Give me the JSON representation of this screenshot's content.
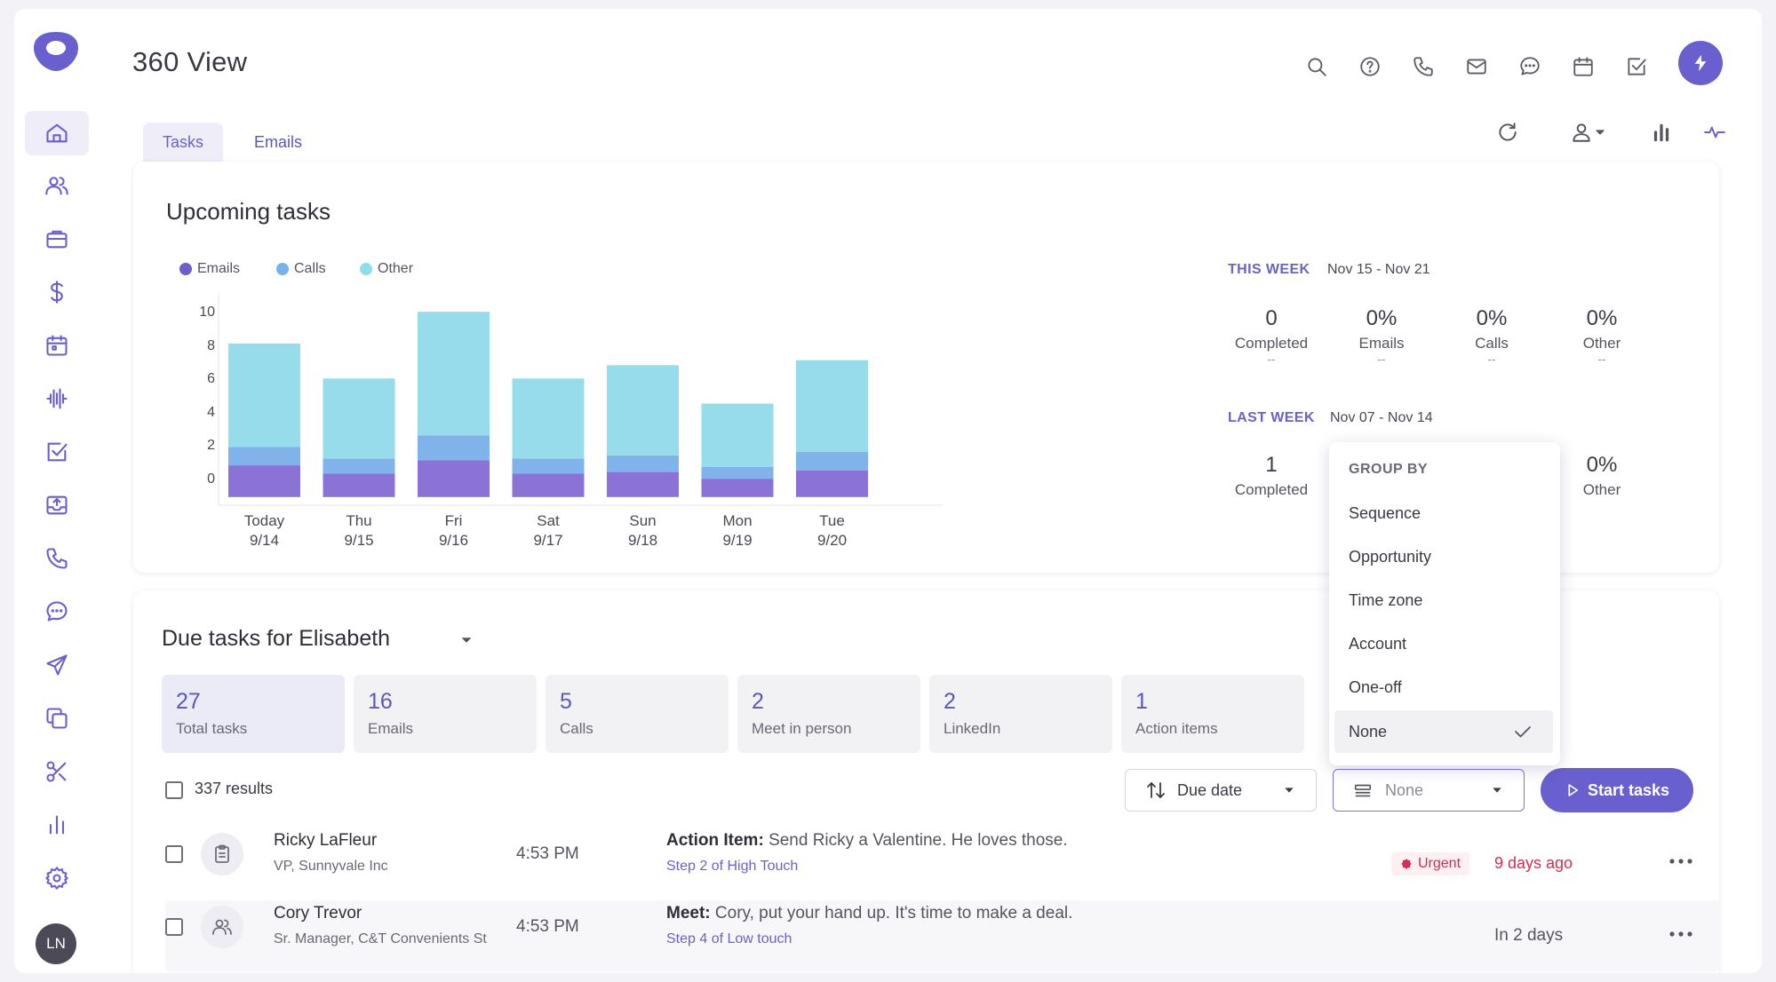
{
  "app": {
    "title": "360 View",
    "user_initials": "LN",
    "accent_color": "#6a5fcf"
  },
  "sidebar": {
    "items": [
      {
        "name": "home",
        "icon": "home-icon"
      },
      {
        "name": "people",
        "icon": "people-icon"
      },
      {
        "name": "deals",
        "icon": "briefcase-icon"
      },
      {
        "name": "revenue",
        "icon": "dollar-icon"
      },
      {
        "name": "calendar",
        "icon": "calendar-icon"
      },
      {
        "name": "activity",
        "icon": "waveform-icon"
      },
      {
        "name": "tasks",
        "icon": "checkbox-icon"
      },
      {
        "name": "inbox",
        "icon": "inbox-upload-icon"
      },
      {
        "name": "calls",
        "icon": "phone-icon"
      },
      {
        "name": "chat",
        "icon": "chat-icon"
      },
      {
        "name": "send",
        "icon": "send-icon"
      },
      {
        "name": "copy",
        "icon": "copy-icon"
      },
      {
        "name": "tools",
        "icon": "scissors-icon"
      },
      {
        "name": "reports",
        "icon": "bar-chart-icon"
      },
      {
        "name": "settings",
        "icon": "gear-icon"
      }
    ]
  },
  "tabs": [
    {
      "label": "Tasks",
      "active": true
    },
    {
      "label": "Emails",
      "active": false
    }
  ],
  "upcoming": {
    "title": "Upcoming tasks",
    "legend": [
      "Emails",
      "Calls",
      "Other"
    ]
  },
  "chart_data": {
    "type": "bar",
    "stacked": true,
    "categories": [
      "Today 9/14",
      "Thu 9/15",
      "Fri 9/16",
      "Sat 9/17",
      "Sun 9/18",
      "Mon 9/19",
      "Tue 9/20"
    ],
    "x_top": [
      "Today",
      "Thu",
      "Fri",
      "Sat",
      "Sun",
      "Mon",
      "Tue"
    ],
    "x_bottom": [
      "9/14",
      "9/15",
      "9/16",
      "9/17",
      "9/18",
      "9/19",
      "9/20"
    ],
    "series": [
      {
        "name": "Emails",
        "color": "#8b72d6",
        "values": [
          1.9,
          1.4,
          2.2,
          1.4,
          1.5,
          1.1,
          1.6
        ]
      },
      {
        "name": "Calls",
        "color": "#7fb3ea",
        "values": [
          1.1,
          0.9,
          1.5,
          0.9,
          1.0,
          0.7,
          1.1
        ]
      },
      {
        "name": "Other",
        "color": "#97dcea",
        "values": [
          6.2,
          4.8,
          7.4,
          4.8,
          5.4,
          3.8,
          5.5
        ]
      }
    ],
    "yticks": [
      0,
      2,
      4,
      6,
      8,
      10
    ],
    "ylim": [
      -1,
      11
    ],
    "legend_position": "top-left",
    "grid": false
  },
  "this_week": {
    "label": "THIS WEEK",
    "range": "Nov 15 - Nov 21",
    "stats": [
      {
        "value": "0",
        "label": "Completed",
        "delta": "--"
      },
      {
        "value": "0%",
        "label": "Emails",
        "delta": "--"
      },
      {
        "value": "0%",
        "label": "Calls",
        "delta": "--"
      },
      {
        "value": "0%",
        "label": "Other",
        "delta": "--"
      }
    ]
  },
  "last_week": {
    "label": "LAST WEEK",
    "range": "Nov 07 - Nov 14",
    "stats": [
      {
        "value": "1",
        "label": "Completed"
      },
      {
        "value": "0%",
        "label": "Other"
      }
    ]
  },
  "due": {
    "title": "Due tasks for Elisabeth",
    "tiles": [
      {
        "count": "27",
        "label": "Total tasks"
      },
      {
        "count": "16",
        "label": "Emails"
      },
      {
        "count": "5",
        "label": "Calls"
      },
      {
        "count": "2",
        "label": "Meet in person"
      },
      {
        "count": "2",
        "label": "LinkedIn"
      },
      {
        "count": "1",
        "label": "Action items"
      }
    ],
    "results": "337 results",
    "sort_label": "Due date",
    "group_value": "None",
    "start_label": "Start tasks"
  },
  "dropdown": {
    "header": "GROUP BY",
    "options": [
      "Sequence",
      "Opportunity",
      "Time zone",
      "Account",
      "One-off",
      "None"
    ],
    "selected": "None"
  },
  "rows": [
    {
      "name": "Ricky LaFleur",
      "title": "VP, Sunnyvale Inc",
      "time": "4:53 PM",
      "type": "Action Item:",
      "desc": "Send Ricky a Valentine.  He loves those.",
      "step_pre": "Step 2 of ",
      "step_link": "High Touch",
      "badge": "Urgent",
      "due": "9 days ago",
      "icon": "clipboard-icon"
    },
    {
      "name": "Cory Trevor",
      "title": "Sr. Manager, C&T Convenients St",
      "time": "4:53 PM",
      "type": "Meet:",
      "desc": "Cory, put your hand up.  It's time to make a deal.",
      "step_pre": "Step 4 of ",
      "step_link": "Low touch",
      "badge": "",
      "due": "In 2 days",
      "icon": "people-icon"
    }
  ]
}
